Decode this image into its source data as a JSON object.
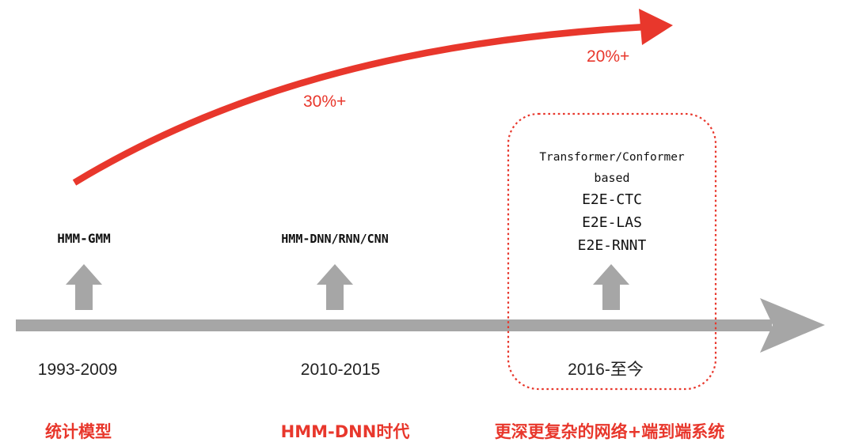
{
  "growth": {
    "first": "30%+",
    "second": "20%+"
  },
  "stages": [
    {
      "model": "HMM-GMM",
      "years": "1993-2009",
      "era": "统计模型"
    },
    {
      "model": "HMM-DNN/RNN/CNN",
      "years": "2010-2015",
      "era": "HMM-DNN时代"
    },
    {
      "models": [
        "Transformer/Conformer",
        "based",
        "E2E-CTC",
        "E2E-LAS",
        "E2E-RNNT"
      ],
      "years": "2016-至今",
      "era": "更深更复杂的网络+端到端系统"
    }
  ],
  "colors": {
    "accent": "#e8372c",
    "axis": "#a6a6a6",
    "up_arrow": "#a6a6a6"
  }
}
